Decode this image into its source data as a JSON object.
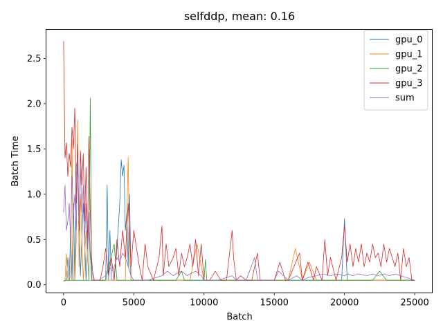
{
  "chart_data": {
    "type": "line",
    "title": "selfddp, mean: 0.16",
    "xlabel": "Batch",
    "ylabel": "Batch Time",
    "xlim": [
      -1250,
      26250
    ],
    "ylim": [
      -0.09,
      2.82
    ],
    "xticks": [
      0,
      5000,
      10000,
      15000,
      20000,
      25000
    ],
    "yticks": [
      0.0,
      0.5,
      1.0,
      1.5,
      2.0,
      2.5
    ],
    "xtick_labels": [
      "0",
      "5000",
      "10000",
      "15000",
      "20000",
      "25000"
    ],
    "ytick_labels": [
      "0.0",
      "0.5",
      "1.0",
      "1.5",
      "2.0",
      "2.5"
    ],
    "grid": false,
    "legend_position": "upper right",
    "series": [
      {
        "name": "gpu_0",
        "color": "#1f77b4",
        "x": [
          0,
          100,
          200,
          300,
          400,
          500,
          600,
          700,
          800,
          900,
          1000,
          1200,
          1400,
          1600,
          1800,
          2000,
          2200,
          2400,
          2600,
          2800,
          3000,
          3100,
          3200,
          3300,
          3400,
          3600,
          3800,
          4000,
          4100,
          4200,
          4300,
          4400,
          4500,
          4600,
          4700,
          4800,
          5000,
          5500,
          6000,
          7000,
          8000,
          9000,
          9500,
          10000,
          11000,
          12000,
          13000,
          14000,
          15000,
          16000,
          17000,
          18000,
          19000,
          19800,
          20000,
          20200,
          21000,
          22000,
          23000,
          24000,
          25000
        ],
        "values": [
          0.04,
          0.05,
          0.05,
          0.3,
          0.05,
          0.6,
          0.05,
          0.9,
          0.05,
          1.3,
          1.4,
          0.1,
          0.9,
          0.05,
          0.7,
          0.05,
          0.05,
          0.05,
          0.05,
          0.05,
          0.05,
          1.1,
          0.05,
          0.6,
          0.05,
          0.05,
          0.4,
          0.9,
          1.38,
          1.2,
          1.32,
          0.6,
          0.8,
          0.2,
          1.0,
          0.05,
          0.05,
          0.05,
          0.05,
          0.05,
          0.05,
          0.05,
          0.05,
          0.05,
          0.05,
          0.05,
          0.05,
          0.05,
          0.05,
          0.05,
          0.05,
          0.05,
          0.05,
          0.05,
          0.73,
          0.05,
          0.05,
          0.05,
          0.05,
          0.05,
          0.05
        ]
      },
      {
        "name": "gpu_1",
        "color": "#ff7f0e",
        "x": [
          0,
          100,
          200,
          300,
          400,
          500,
          600,
          700,
          800,
          900,
          1000,
          1100,
          1200,
          1400,
          1600,
          1800,
          2000,
          2200,
          2500,
          3000,
          3500,
          4000,
          4400,
          4600,
          4700,
          4800,
          5000,
          6000,
          7000,
          8000,
          9000,
          9500,
          10000,
          11000,
          12000,
          13000,
          14000,
          15000,
          16000,
          16500,
          17000,
          17500,
          18000,
          19000,
          20000,
          21000,
          22000,
          23000,
          24000,
          25000
        ],
        "values": [
          0.04,
          0.05,
          0.34,
          0.05,
          0.05,
          0.1,
          1.6,
          0.05,
          0.05,
          0.5,
          1.82,
          0.2,
          1.0,
          0.05,
          0.6,
          0.05,
          0.05,
          0.05,
          0.05,
          0.05,
          0.05,
          0.05,
          0.05,
          1.41,
          0.3,
          0.05,
          0.05,
          0.05,
          0.05,
          0.05,
          0.05,
          0.45,
          0.05,
          0.05,
          0.05,
          0.05,
          0.05,
          0.05,
          0.05,
          0.4,
          0.05,
          0.25,
          0.05,
          0.05,
          0.05,
          0.05,
          0.05,
          0.05,
          0.05,
          0.05
        ]
      },
      {
        "name": "gpu_2",
        "color": "#2ca02c",
        "x": [
          0,
          200,
          400,
          600,
          800,
          1000,
          1200,
          1400,
          1600,
          1800,
          1900,
          2000,
          2200,
          3000,
          3600,
          3800,
          4000,
          5000,
          6000,
          7000,
          8000,
          8400,
          8600,
          9000,
          10000,
          10100,
          10200,
          11000,
          12000,
          13000,
          14000,
          15000,
          16000,
          17000,
          18000,
          19000,
          20000,
          21000,
          22000,
          22500,
          23000,
          24000,
          25000
        ],
        "values": [
          0.04,
          0.05,
          0.05,
          0.05,
          0.05,
          0.05,
          0.05,
          0.05,
          0.05,
          0.05,
          2.06,
          0.05,
          0.05,
          0.05,
          0.45,
          0.05,
          0.05,
          0.05,
          0.05,
          0.05,
          0.05,
          0.15,
          0.05,
          0.05,
          0.05,
          0.28,
          0.05,
          0.05,
          0.05,
          0.05,
          0.05,
          0.05,
          0.05,
          0.05,
          0.05,
          0.05,
          0.05,
          0.05,
          0.05,
          0.15,
          0.05,
          0.05,
          0.05
        ]
      },
      {
        "name": "gpu_3",
        "color": "#d62728",
        "x": [
          0,
          100,
          200,
          300,
          400,
          500,
          600,
          700,
          800,
          900,
          1000,
          1100,
          1200,
          1300,
          1400,
          1500,
          1600,
          1700,
          1800,
          1900,
          2000,
          2100,
          2200,
          2400,
          2600,
          2800,
          3000,
          3200,
          3400,
          3600,
          3800,
          4000,
          4200,
          4400,
          4600,
          4800,
          5000,
          5400,
          5600,
          5800,
          6000,
          6400,
          6800,
          7000,
          7100,
          7300,
          7500,
          7800,
          8000,
          8200,
          8400,
          8600,
          8800,
          9000,
          9200,
          9400,
          9600,
          9800,
          10000,
          10400,
          10800,
          11200,
          11600,
          12000,
          12100,
          12300,
          12600,
          13000,
          13400,
          13800,
          14000,
          14400,
          14800,
          15000,
          15400,
          15800,
          16000,
          16400,
          16800,
          17000,
          17400,
          17800,
          18000,
          18400,
          18600,
          18800,
          19000,
          19400,
          19800,
          20000,
          20200,
          20400,
          20600,
          20800,
          21000,
          21200,
          21400,
          21600,
          21800,
          22000,
          22200,
          22400,
          22600,
          22800,
          23000,
          23200,
          23400,
          23600,
          23800,
          24000,
          24200,
          24400,
          24600,
          24800,
          25000
        ],
        "values": [
          2.69,
          1.4,
          1.57,
          1.2,
          1.45,
          1.3,
          1.74,
          1.5,
          1.95,
          0.9,
          1.55,
          0.6,
          1.48,
          1.1,
          1.45,
          0.7,
          1.3,
          0.4,
          1.64,
          0.8,
          0.3,
          0.05,
          0.05,
          0.05,
          0.05,
          0.2,
          0.4,
          0.1,
          0.3,
          0.05,
          0.5,
          0.2,
          0.6,
          0.3,
          0.9,
          0.2,
          0.6,
          0.2,
          0.05,
          0.45,
          0.2,
          0.05,
          0.3,
          0.65,
          0.1,
          0.45,
          0.2,
          0.3,
          0.4,
          0.1,
          0.35,
          0.2,
          0.3,
          0.45,
          0.2,
          0.5,
          0.1,
          0.45,
          0.05,
          0.05,
          0.15,
          0.05,
          0.05,
          0.6,
          0.3,
          0.05,
          0.1,
          0.05,
          0.05,
          0.35,
          0.05,
          0.05,
          0.05,
          0.05,
          0.25,
          0.05,
          0.05,
          0.2,
          0.35,
          0.05,
          0.25,
          0.05,
          0.2,
          0.05,
          0.5,
          0.1,
          0.3,
          0.05,
          0.3,
          0.65,
          0.25,
          0.45,
          0.2,
          0.4,
          0.25,
          0.45,
          0.2,
          0.35,
          0.25,
          0.45,
          0.3,
          0.35,
          0.2,
          0.45,
          0.25,
          0.4,
          0.3,
          0.2,
          0.35,
          0.05,
          0.4,
          0.2,
          0.3,
          0.05,
          0.05
        ]
      },
      {
        "name": "sum",
        "color": "#9467bd",
        "x": [
          0,
          100,
          200,
          300,
          400,
          500,
          600,
          700,
          800,
          900,
          1000,
          1100,
          1200,
          1300,
          1400,
          1500,
          1600,
          1700,
          1800,
          1900,
          2000,
          2200,
          2500,
          3000,
          3200,
          3500,
          3800,
          4000,
          4200,
          4400,
          4600,
          4800,
          5000,
          6000,
          7000,
          7400,
          7800,
          8000,
          8400,
          8800,
          9000,
          9400,
          9800,
          10000,
          11000,
          12000,
          12300,
          13000,
          13600,
          13800,
          14000,
          15000,
          15300,
          16000,
          16600,
          17000,
          17400,
          18000,
          18500,
          19000,
          19500,
          20000,
          20200,
          20600,
          21000,
          21600,
          22000,
          22400,
          22800,
          23200,
          23600,
          24000,
          24400,
          25000
        ],
        "values": [
          0.8,
          1.1,
          0.6,
          0.7,
          0.9,
          0.5,
          1.2,
          0.8,
          1.0,
          0.6,
          1.4,
          0.7,
          1.3,
          0.8,
          1.1,
          0.5,
          0.9,
          0.4,
          0.8,
          0.3,
          0.2,
          0.05,
          0.05,
          0.1,
          0.2,
          0.15,
          0.3,
          0.25,
          0.35,
          0.3,
          0.2,
          0.1,
          0.05,
          0.05,
          0.1,
          0.15,
          0.1,
          0.12,
          0.15,
          0.1,
          0.12,
          0.15,
          0.1,
          0.05,
          0.05,
          0.1,
          0.05,
          0.05,
          0.3,
          0.05,
          0.05,
          0.05,
          0.15,
          0.05,
          0.1,
          0.05,
          0.08,
          0.1,
          0.12,
          0.1,
          0.12,
          0.1,
          0.12,
          0.1,
          0.12,
          0.1,
          0.12,
          0.1,
          0.12,
          0.1,
          0.12,
          0.1,
          0.08,
          0.05
        ]
      }
    ]
  }
}
